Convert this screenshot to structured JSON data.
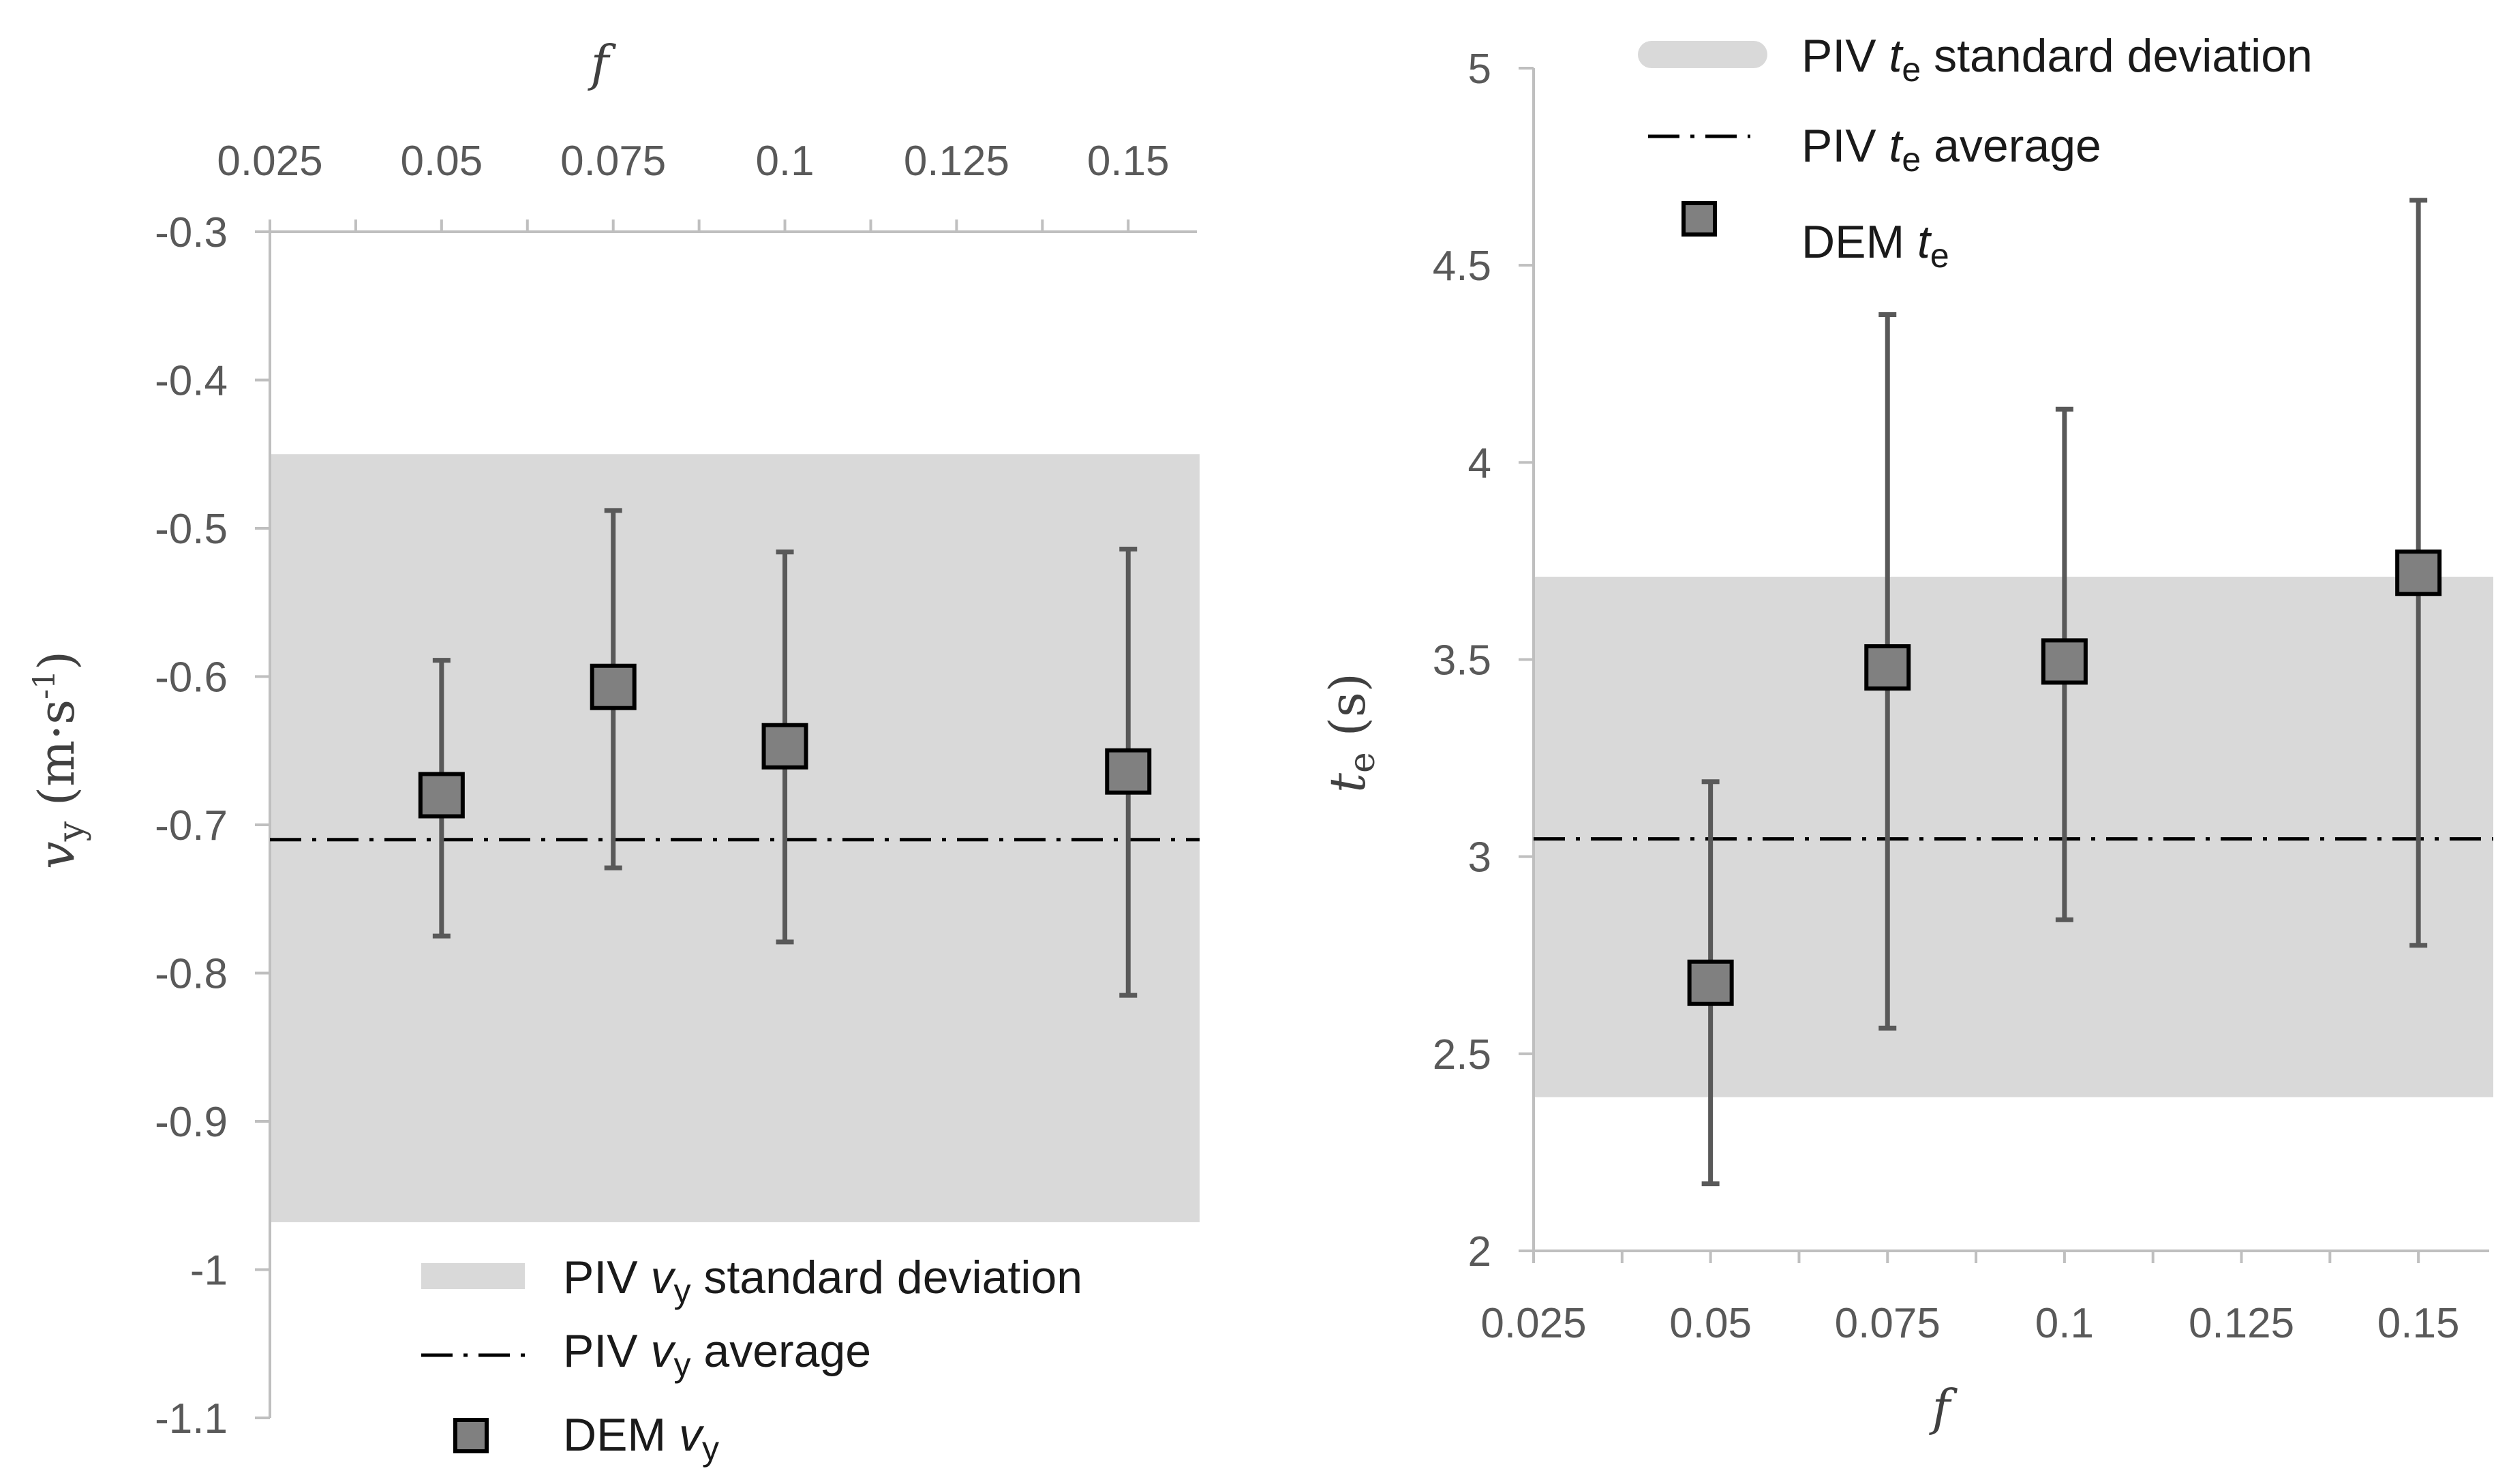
{
  "chart_data": [
    {
      "type": "scatter",
      "title": "",
      "x_axis": {
        "label": "f",
        "position": "top",
        "range": [
          0.025,
          0.16
        ],
        "ticks": [
          "0.025",
          "0.05",
          "0.075",
          "0.1",
          "0.125",
          "0.15"
        ]
      },
      "y_axis": {
        "label_base": "v",
        "label_sub": "y",
        "label_units": "(m·s",
        "label_sup": "-1",
        "label_close": ")",
        "range": [
          -1.1,
          -0.3
        ],
        "ticks": [
          "-0.3",
          "-0.4",
          "-0.5",
          "-0.6",
          "-0.7",
          "-0.8",
          "-0.9",
          "-1",
          "-1.1"
        ]
      },
      "band": {
        "low": -0.968,
        "high": -0.45,
        "color": "#d9d9d9"
      },
      "average": -0.71,
      "points": {
        "x": [
          0.05,
          0.075,
          0.1,
          0.15
        ],
        "y": [
          -0.68,
          -0.607,
          -0.647,
          -0.664
        ],
        "err_low": [
          -0.775,
          -0.729,
          -0.779,
          -0.815
        ],
        "err_high": [
          -0.589,
          -0.488,
          -0.516,
          -0.514
        ]
      },
      "legend": {
        "placement": "bottom-right",
        "band": {
          "pre": "PIV ",
          "var": "v",
          "sub": "y",
          "post": " standard deviation"
        },
        "avg": {
          "pre": "PIV ",
          "var": "v",
          "sub": "y",
          "post": " average"
        },
        "points": {
          "pre": "DEM ",
          "var": "v",
          "sub": "y",
          "post": ""
        }
      },
      "grid": false
    },
    {
      "type": "scatter",
      "title": "",
      "x_axis": {
        "label": "f",
        "position": "bottom",
        "range": [
          0.025,
          0.16
        ],
        "ticks": [
          "0.025",
          "0.05",
          "0.075",
          "0.1",
          "0.125",
          "0.15"
        ]
      },
      "y_axis": {
        "label_base": "t",
        "label_sub": "e",
        "label_units": "(s)",
        "range": [
          2,
          5
        ],
        "ticks": [
          "5",
          "4.5",
          "4",
          "3.5",
          "3",
          "2.5",
          "2"
        ]
      },
      "band": {
        "low": 2.39,
        "high": 3.71,
        "color": "#d9d9d9"
      },
      "average": 3.045,
      "points": {
        "x": [
          0.05,
          0.075,
          0.1,
          0.15
        ],
        "y": [
          2.68,
          3.48,
          3.495,
          3.72
        ],
        "err_low": [
          2.17,
          2.565,
          2.84,
          2.775
        ],
        "err_high": [
          3.19,
          4.375,
          4.135,
          4.665
        ]
      },
      "legend": {
        "placement": "top-right",
        "band": {
          "pre": "PIV ",
          "var": "t",
          "sub": "e",
          "post": " standard deviation"
        },
        "avg": {
          "pre": "PIV ",
          "var": "t",
          "sub": "e",
          "post": " average"
        },
        "points": {
          "pre": "DEM ",
          "var": "t",
          "sub": "e",
          "post": ""
        }
      },
      "grid": false
    }
  ]
}
